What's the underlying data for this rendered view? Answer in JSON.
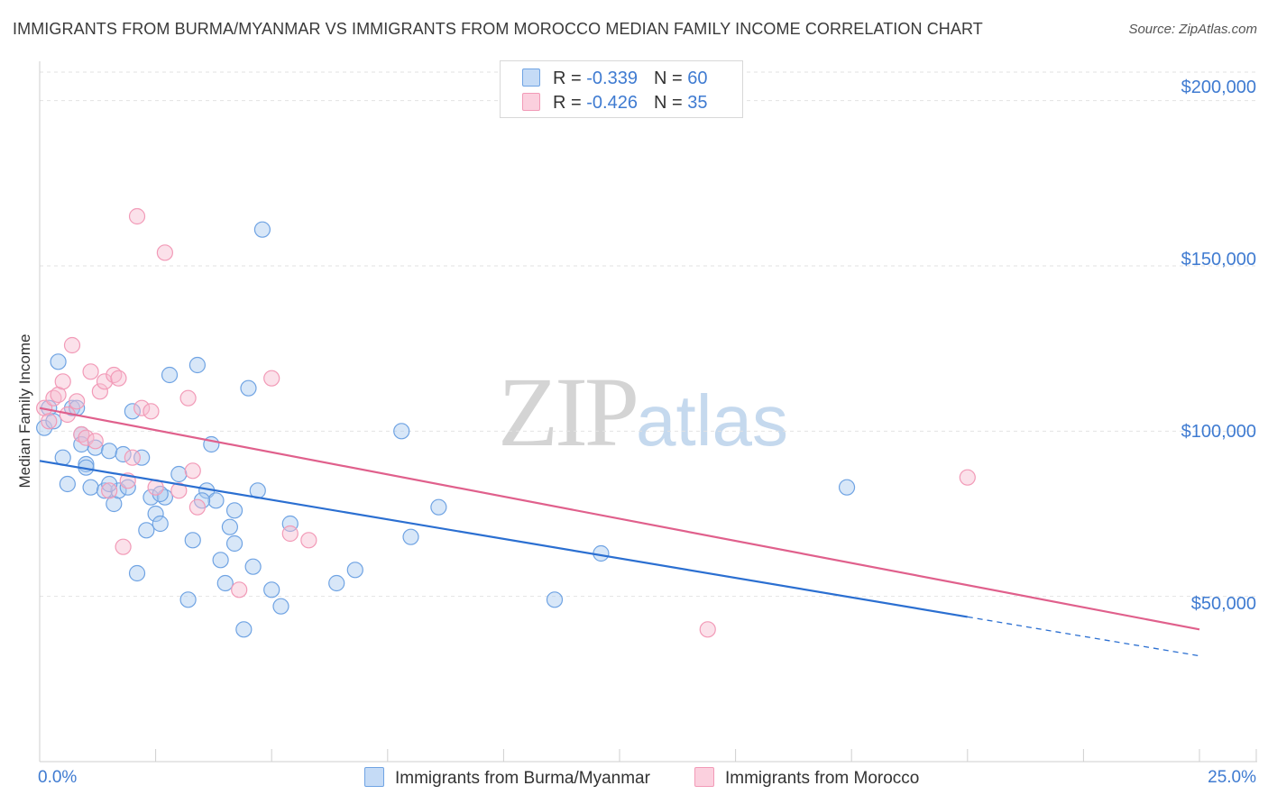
{
  "header": {
    "title": "IMMIGRANTS FROM BURMA/MYANMAR VS IMMIGRANTS FROM MOROCCO MEDIAN FAMILY INCOME CORRELATION CHART",
    "source": "Source: ZipAtlas.com"
  },
  "watermark": {
    "zip": "ZIP",
    "atlas": "atlas"
  },
  "legend": {
    "rows": [
      {
        "r_label": "R = ",
        "r_value": "-0.339",
        "n_label": "N = ",
        "n_value": "60"
      },
      {
        "r_label": "R = ",
        "r_value": "-0.426",
        "n_label": "N = ",
        "n_value": "35"
      }
    ]
  },
  "chart_data": {
    "type": "scatter",
    "title": "IMMIGRANTS FROM BURMA/MYANMAR VS IMMIGRANTS FROM MOROCCO MEDIAN FAMILY INCOME CORRELATION CHART",
    "xlabel": "",
    "ylabel": "Median Family Income",
    "xlim": [
      0,
      25
    ],
    "ylim": [
      0,
      210000
    ],
    "x_tick_labels": [
      "0.0%",
      "25.0%"
    ],
    "y_ticks": [
      50000,
      100000,
      150000,
      200000
    ],
    "y_tick_labels": [
      "$50,000",
      "$100,000",
      "$150,000",
      "$200,000"
    ],
    "grid": true,
    "colors": {
      "burma": "#6fa3e3",
      "burma_line": "#2b6fd1",
      "morocco": "#f29ab7",
      "morocco_line": "#e0608c"
    },
    "series": [
      {
        "name": "Immigrants from Burma/Myanmar",
        "trend": {
          "x0": 0,
          "y0": 91000,
          "x1": 25,
          "y1": 32000,
          "solid_until_x": 20
        },
        "points": [
          [
            0.1,
            101000
          ],
          [
            0.2,
            107000
          ],
          [
            0.3,
            103000
          ],
          [
            0.4,
            121000
          ],
          [
            0.5,
            92000
          ],
          [
            0.6,
            84000
          ],
          [
            0.7,
            107000
          ],
          [
            0.8,
            107000
          ],
          [
            0.9,
            99000
          ],
          [
            1.0,
            90000
          ],
          [
            1.0,
            89000
          ],
          [
            1.1,
            83000
          ],
          [
            1.2,
            95000
          ],
          [
            1.4,
            82000
          ],
          [
            1.5,
            94000
          ],
          [
            1.6,
            78000
          ],
          [
            1.7,
            82000
          ],
          [
            1.8,
            93000
          ],
          [
            1.9,
            83000
          ],
          [
            2.0,
            106000
          ],
          [
            2.1,
            57000
          ],
          [
            2.2,
            92000
          ],
          [
            2.3,
            70000
          ],
          [
            2.4,
            80000
          ],
          [
            2.5,
            75000
          ],
          [
            2.6,
            72000
          ],
          [
            2.7,
            80000
          ],
          [
            2.8,
            117000
          ],
          [
            3.0,
            87000
          ],
          [
            3.2,
            49000
          ],
          [
            3.3,
            67000
          ],
          [
            3.4,
            120000
          ],
          [
            3.6,
            82000
          ],
          [
            3.7,
            96000
          ],
          [
            3.8,
            79000
          ],
          [
            3.9,
            61000
          ],
          [
            4.0,
            54000
          ],
          [
            4.1,
            71000
          ],
          [
            4.2,
            76000
          ],
          [
            4.4,
            40000
          ],
          [
            4.5,
            113000
          ],
          [
            4.6,
            59000
          ],
          [
            4.7,
            82000
          ],
          [
            4.8,
            161000
          ],
          [
            5.0,
            52000
          ],
          [
            5.2,
            47000
          ],
          [
            5.4,
            72000
          ],
          [
            6.4,
            54000
          ],
          [
            6.8,
            58000
          ],
          [
            7.8,
            100000
          ],
          [
            8.0,
            68000
          ],
          [
            8.6,
            77000
          ],
          [
            11.1,
            49000
          ],
          [
            12.1,
            63000
          ],
          [
            17.4,
            83000
          ],
          [
            0.9,
            96000
          ],
          [
            1.5,
            84000
          ],
          [
            2.6,
            81000
          ],
          [
            3.5,
            79000
          ],
          [
            4.2,
            66000
          ]
        ]
      },
      {
        "name": "Immigrants from Morocco",
        "trend": {
          "x0": 0,
          "y0": 107000,
          "x1": 25,
          "y1": 40000
        },
        "points": [
          [
            0.1,
            107000
          ],
          [
            0.2,
            103000
          ],
          [
            0.3,
            110000
          ],
          [
            0.4,
            111000
          ],
          [
            0.5,
            115000
          ],
          [
            0.6,
            105000
          ],
          [
            0.7,
            126000
          ],
          [
            0.8,
            109000
          ],
          [
            0.9,
            99000
          ],
          [
            1.0,
            98000
          ],
          [
            1.1,
            118000
          ],
          [
            1.2,
            97000
          ],
          [
            1.3,
            112000
          ],
          [
            1.4,
            115000
          ],
          [
            1.5,
            82000
          ],
          [
            1.6,
            117000
          ],
          [
            1.7,
            116000
          ],
          [
            1.8,
            65000
          ],
          [
            1.9,
            85000
          ],
          [
            2.0,
            92000
          ],
          [
            2.1,
            165000
          ],
          [
            2.2,
            107000
          ],
          [
            2.4,
            106000
          ],
          [
            2.5,
            83000
          ],
          [
            2.7,
            154000
          ],
          [
            3.0,
            82000
          ],
          [
            3.2,
            110000
          ],
          [
            3.3,
            88000
          ],
          [
            3.4,
            77000
          ],
          [
            4.3,
            52000
          ],
          [
            5.0,
            116000
          ],
          [
            5.4,
            69000
          ],
          [
            5.8,
            67000
          ],
          [
            14.4,
            40000
          ],
          [
            20.0,
            86000
          ]
        ]
      }
    ]
  },
  "bottom_legend": {
    "items": [
      {
        "label": "Immigrants from Burma/Myanmar"
      },
      {
        "label": "Immigrants from Morocco"
      }
    ]
  }
}
